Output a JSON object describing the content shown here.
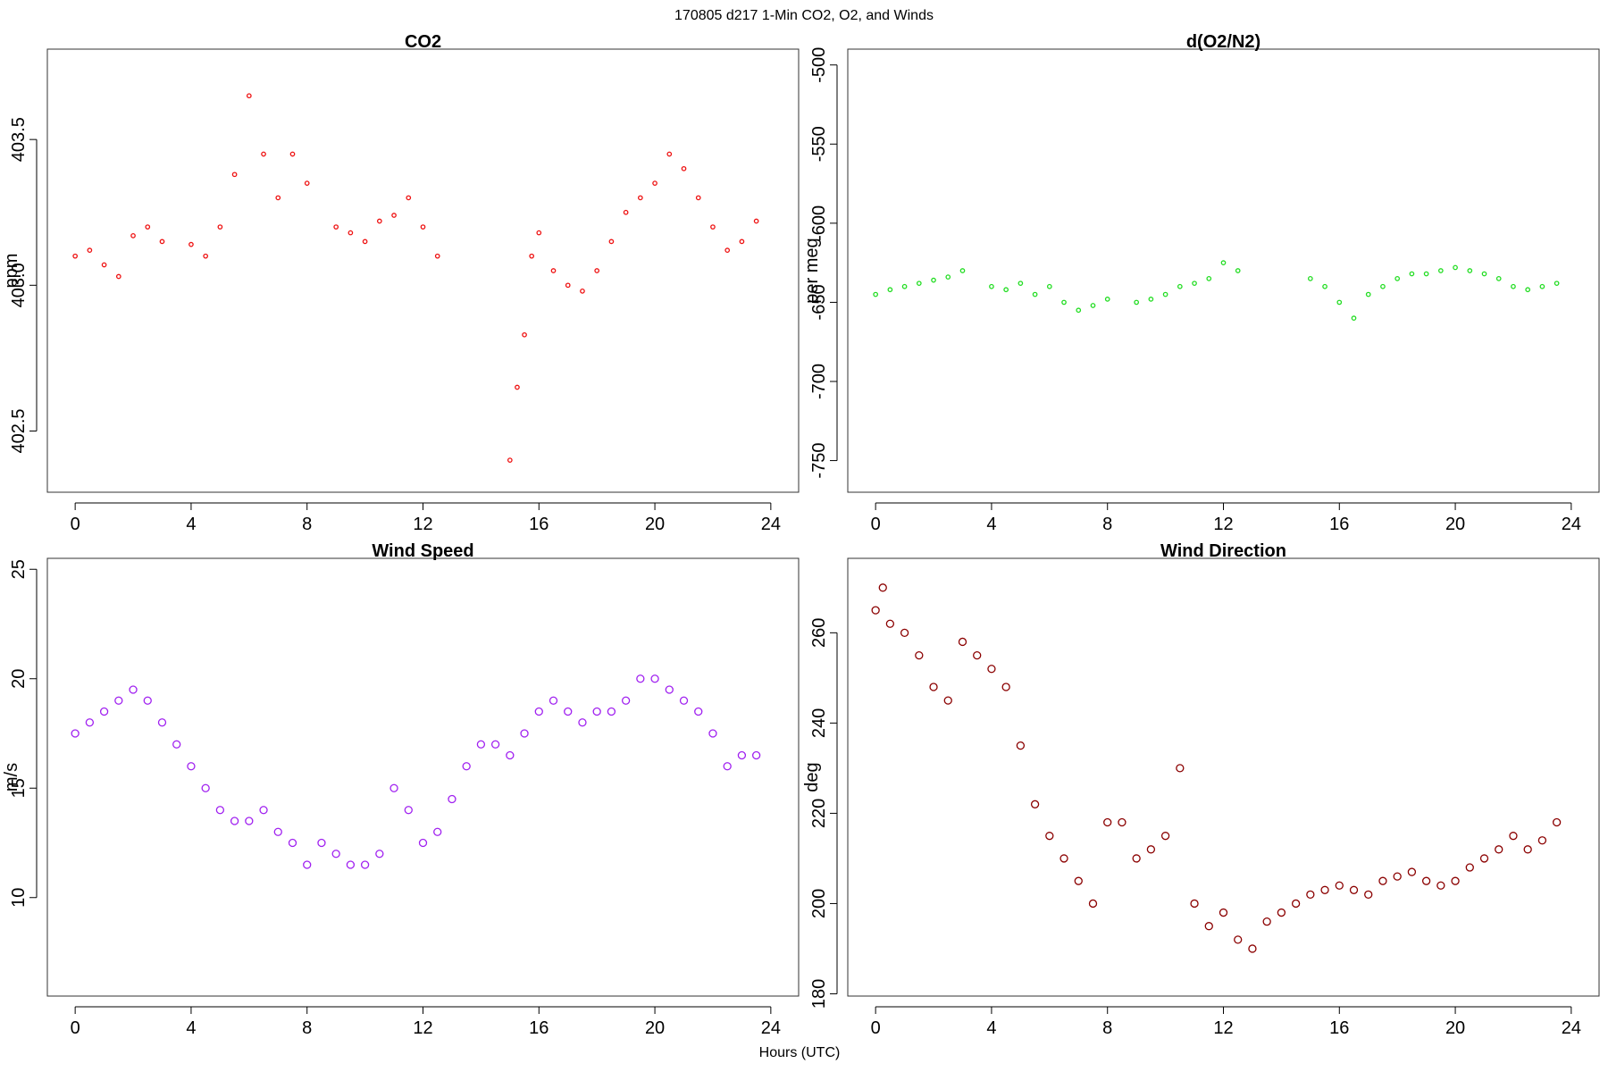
{
  "figure": {
    "suptitle": "170805   d217   1-Min CO2, O2, and Winds",
    "xlabel": "Hours (UTC)"
  },
  "chart_data": [
    {
      "type": "scatter",
      "title": "CO2",
      "ylabel": "ppm",
      "color": "#ee1111",
      "xlim": [
        -0.96,
        24.96
      ],
      "ylim": [
        402.29,
        403.81
      ],
      "xticks": [
        0,
        4,
        8,
        12,
        16,
        20,
        24
      ],
      "yticks": [
        402.5,
        403.0,
        403.5
      ],
      "yticklabels": [
        "402.5",
        "403.0",
        "403.5"
      ],
      "x": [
        0.0,
        0.5,
        1.0,
        1.5,
        2.0,
        2.5,
        3.0,
        4.0,
        4.5,
        5.0,
        5.5,
        6.0,
        6.5,
        7.0,
        7.5,
        8.0,
        9.0,
        9.5,
        10.0,
        10.5,
        11.0,
        11.5,
        12.0,
        12.5,
        15.0,
        15.25,
        15.5,
        15.75,
        16.0,
        16.5,
        17.0,
        17.5,
        18.0,
        18.5,
        19.0,
        19.5,
        20.0,
        20.5,
        21.0,
        21.5,
        22.0,
        22.5,
        23.0,
        23.5
      ],
      "y": [
        403.1,
        403.12,
        403.07,
        403.03,
        403.17,
        403.2,
        403.15,
        403.14,
        403.1,
        403.2,
        403.38,
        403.65,
        403.45,
        403.3,
        403.45,
        403.35,
        403.2,
        403.18,
        403.15,
        403.22,
        403.24,
        403.3,
        403.2,
        403.1,
        402.4,
        402.65,
        402.83,
        403.1,
        403.18,
        403.05,
        403.0,
        402.98,
        403.05,
        403.15,
        403.25,
        403.3,
        403.35,
        403.45,
        403.4,
        403.3,
        403.2,
        403.12,
        403.15,
        403.22
      ]
    },
    {
      "type": "scatter",
      "title": "d(O2/N2)",
      "ylabel": "per meg",
      "color": "#22dd22",
      "xlim": [
        -0.96,
        24.96
      ],
      "ylim": [
        -770,
        -490
      ],
      "xticks": [
        0,
        4,
        8,
        12,
        16,
        20,
        24
      ],
      "yticks": [
        -750,
        -700,
        -650,
        -600,
        -550,
        -500
      ],
      "yticklabels": [
        "-750",
        "-700",
        "-650",
        "-600",
        "-550",
        "-500"
      ],
      "x": [
        0.0,
        0.5,
        1.0,
        1.5,
        2.0,
        2.5,
        3.0,
        4.0,
        4.5,
        5.0,
        5.5,
        6.0,
        6.5,
        7.0,
        7.5,
        8.0,
        9.0,
        9.5,
        10.0,
        10.5,
        11.0,
        11.5,
        12.0,
        12.5,
        15.0,
        15.5,
        16.0,
        16.5,
        17.0,
        17.5,
        18.0,
        18.5,
        19.0,
        19.5,
        20.0,
        20.5,
        21.0,
        21.5,
        22.0,
        22.5,
        23.0,
        23.5
      ],
      "y": [
        -645,
        -642,
        -640,
        -638,
        -636,
        -634,
        -630,
        -640,
        -642,
        -638,
        -645,
        -640,
        -650,
        -655,
        -652,
        -648,
        -650,
        -648,
        -645,
        -640,
        -638,
        -635,
        -625,
        -630,
        -635,
        -640,
        -650,
        -660,
        -645,
        -640,
        -635,
        -632,
        -632,
        -630,
        -628,
        -630,
        -632,
        -635,
        -640,
        -642,
        -640,
        -638
      ]
    },
    {
      "type": "scatter",
      "title": "Wind Speed",
      "ylabel": "m/s",
      "color": "#a020f0",
      "xlim": [
        -0.96,
        24.96
      ],
      "ylim": [
        5.5,
        25.5
      ],
      "xticks": [
        0,
        4,
        8,
        12,
        16,
        20,
        24
      ],
      "yticks": [
        10,
        15,
        20,
        25
      ],
      "yticklabels": [
        "10",
        "15",
        "20",
        "25"
      ],
      "x": [
        0.0,
        0.5,
        1.0,
        1.5,
        2.0,
        2.5,
        3.0,
        3.5,
        4.0,
        4.5,
        5.0,
        5.5,
        6.0,
        6.5,
        7.0,
        7.5,
        8.0,
        8.5,
        9.0,
        9.5,
        10.0,
        10.5,
        11.0,
        11.5,
        12.0,
        12.5,
        13.0,
        13.5,
        14.0,
        14.5,
        15.0,
        15.5,
        16.0,
        16.5,
        17.0,
        17.5,
        18.0,
        18.5,
        19.0,
        19.5,
        20.0,
        20.5,
        21.0,
        21.5,
        22.0,
        22.5,
        23.0,
        23.5
      ],
      "y": [
        17.5,
        18,
        18.5,
        19,
        19.5,
        19,
        18,
        17,
        16,
        15,
        14,
        13.5,
        13.5,
        14,
        13,
        12.5,
        11.5,
        12.5,
        12,
        11.5,
        11.5,
        12,
        15,
        14,
        12.5,
        13,
        14.5,
        16,
        17,
        17,
        16.5,
        17.5,
        18.5,
        19,
        18.5,
        18,
        18.5,
        18.5,
        19,
        20,
        20,
        19.5,
        19,
        18.5,
        17.5,
        16,
        16.5,
        16.5
      ]
    },
    {
      "type": "scatter",
      "title": "Wind Direction",
      "ylabel": "deg",
      "color": "#8b0000",
      "xlim": [
        -0.96,
        24.96
      ],
      "ylim": [
        179.5,
        276.5
      ],
      "xticks": [
        0,
        4,
        8,
        12,
        16,
        20,
        24
      ],
      "yticks": [
        180,
        200,
        220,
        240,
        260
      ],
      "yticklabels": [
        "180",
        "200",
        "220",
        "240",
        "260"
      ],
      "x": [
        0.0,
        0.25,
        0.5,
        1.0,
        1.5,
        2.0,
        2.5,
        3.0,
        3.5,
        4.0,
        4.5,
        5.0,
        5.5,
        6.0,
        6.5,
        7.0,
        7.5,
        8.0,
        8.5,
        9.0,
        9.5,
        10.0,
        10.5,
        11.0,
        11.5,
        12.0,
        12.5,
        13.0,
        13.5,
        14.0,
        14.5,
        15.0,
        15.5,
        16.0,
        16.5,
        17.0,
        17.5,
        18.0,
        18.5,
        19.0,
        19.5,
        20.0,
        20.5,
        21.0,
        21.5,
        22.0,
        22.5,
        23.0,
        23.5
      ],
      "y": [
        265,
        270,
        262,
        260,
        255,
        248,
        245,
        258,
        255,
        252,
        248,
        235,
        222,
        215,
        210,
        205,
        200,
        218,
        218,
        210,
        212,
        215,
        230,
        200,
        195,
        198,
        192,
        190,
        196,
        198,
        200,
        202,
        203,
        204,
        203,
        202,
        205,
        206,
        207,
        205,
        204,
        205,
        208,
        210,
        212,
        215,
        212,
        214,
        218
      ]
    }
  ]
}
